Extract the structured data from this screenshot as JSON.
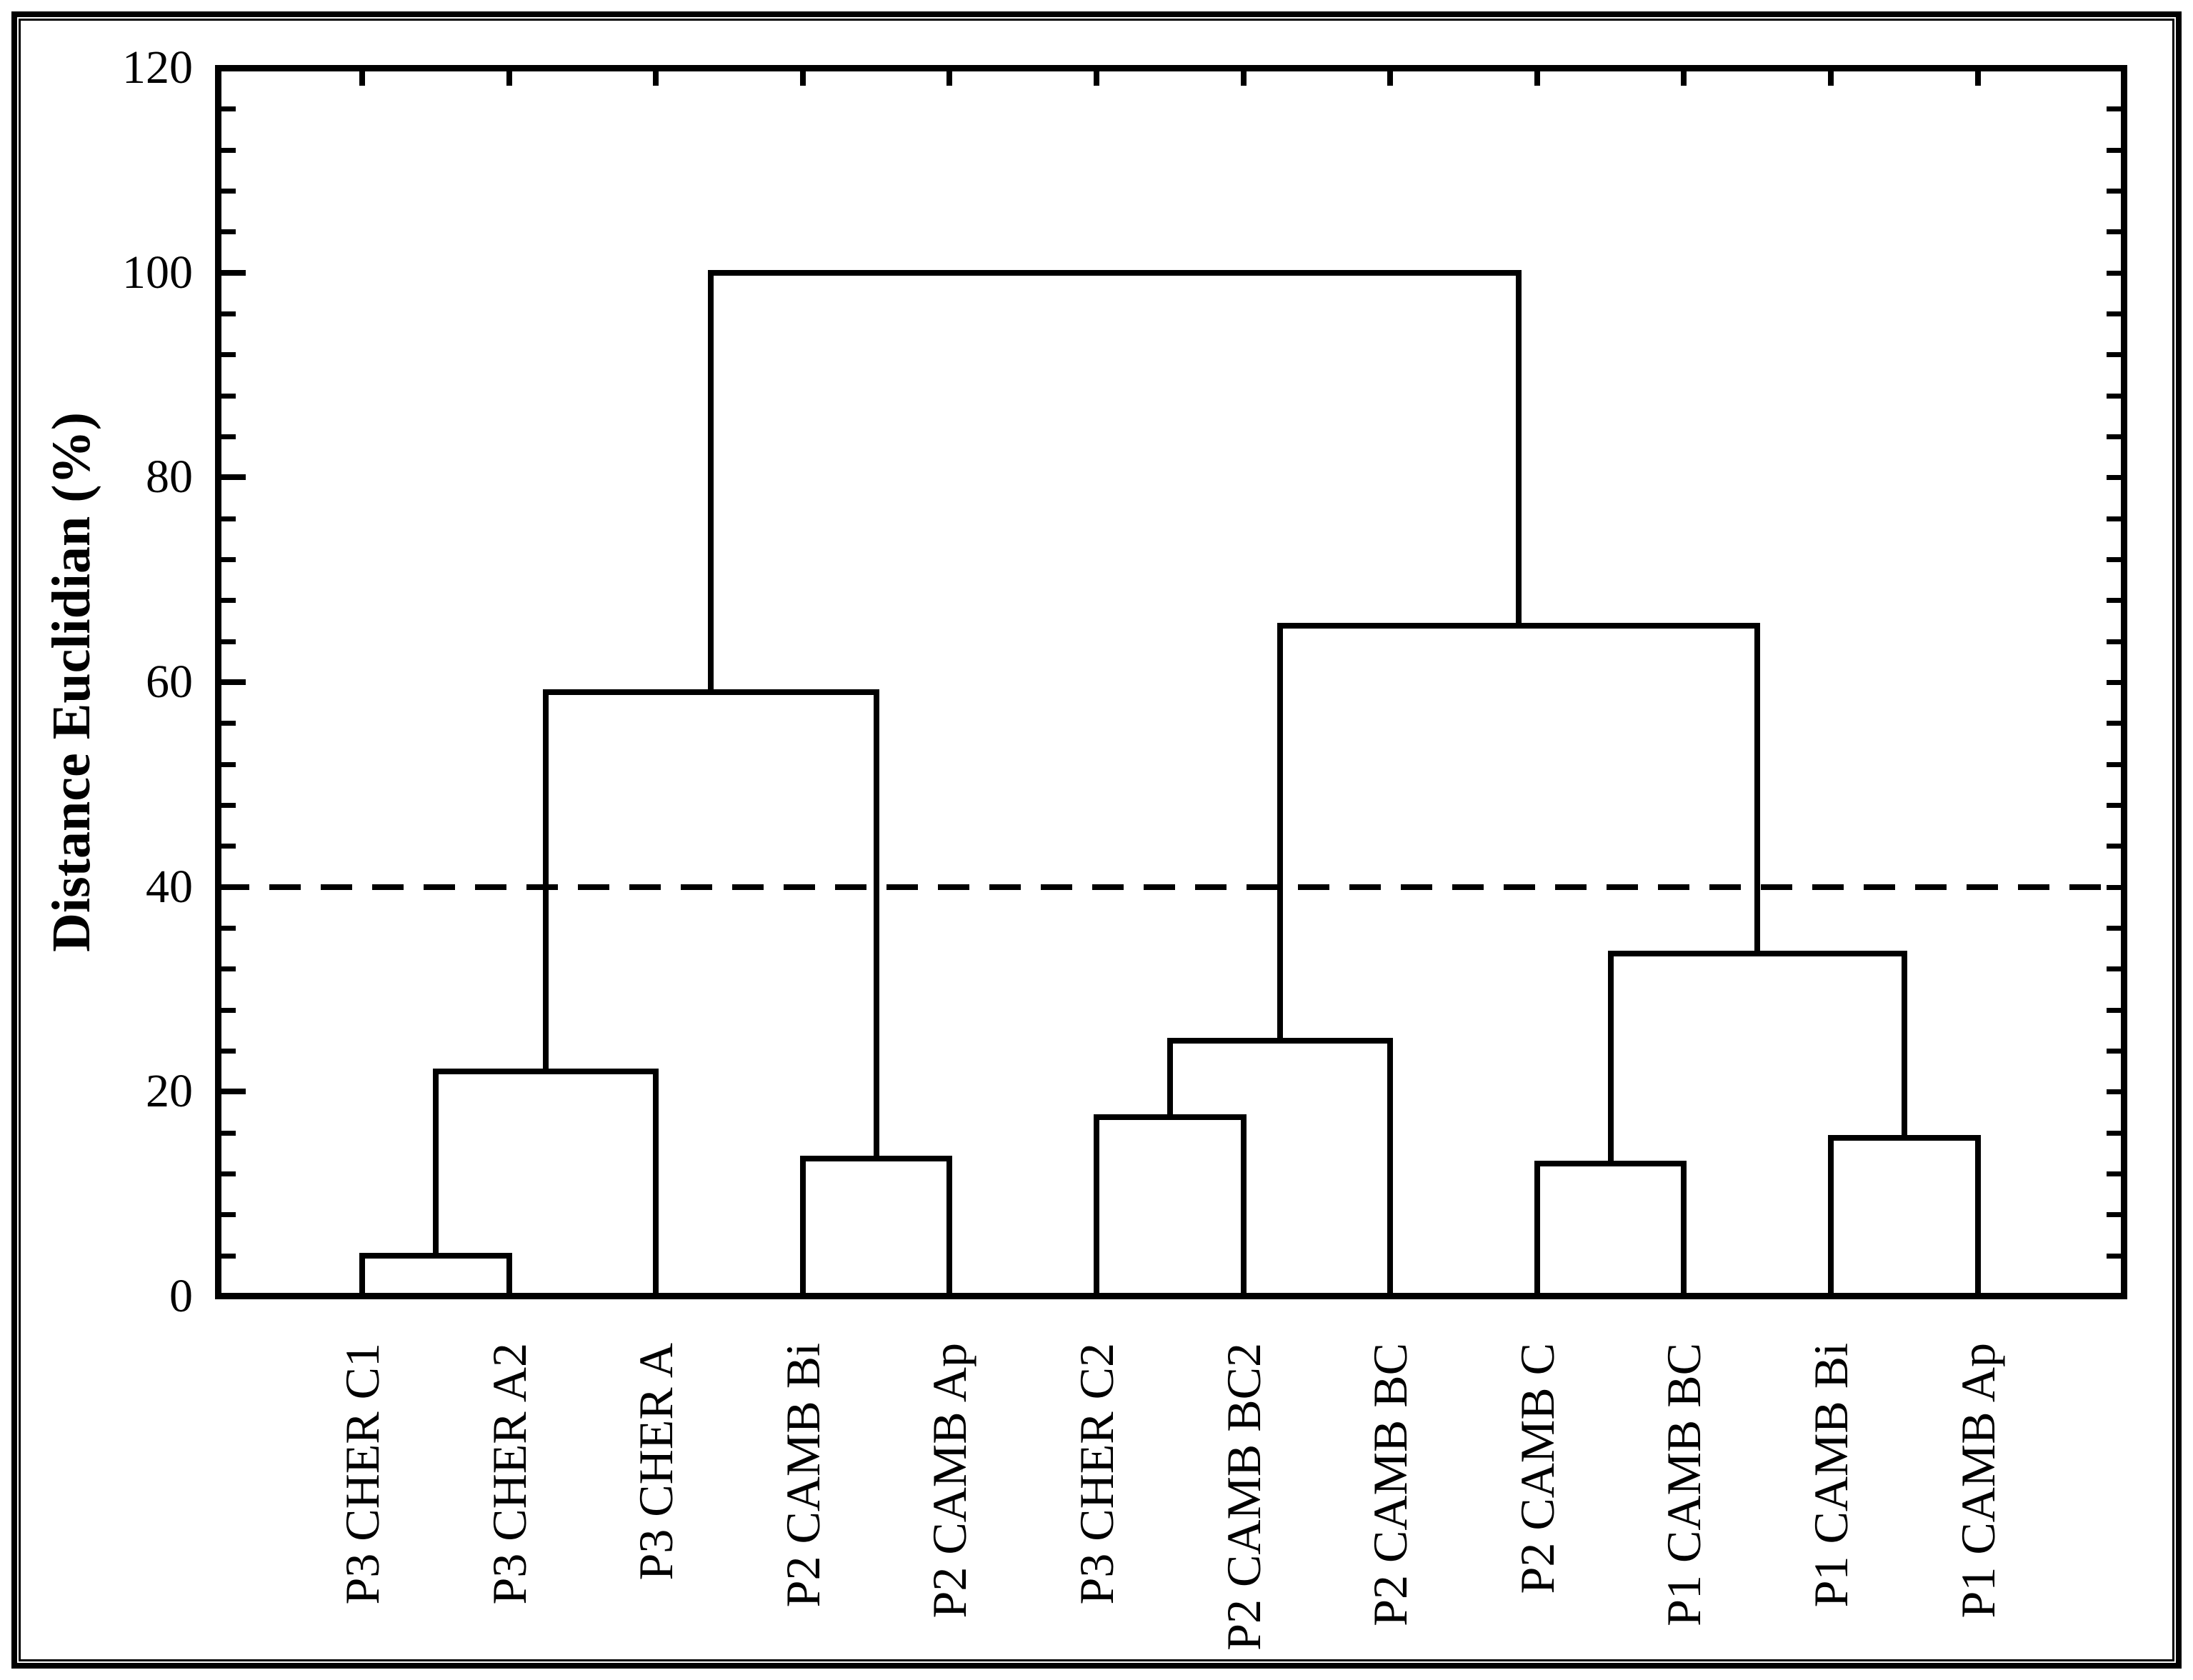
{
  "figure": {
    "background_color": "#ffffff",
    "frame_color": "#000000",
    "line_color": "#000000"
  },
  "chart_data": {
    "type": "dendrogram",
    "title": "",
    "xlabel": "",
    "ylabel": "Distance Euclidian (%)",
    "ylim": [
      0,
      120
    ],
    "yticks": [
      0,
      20,
      40,
      60,
      80,
      100,
      120
    ],
    "ytick_labels": [
      "0",
      "20",
      "40",
      "60",
      "80",
      "100",
      "120"
    ],
    "minor_tick_step": 4,
    "grid": "off",
    "threshold_line": {
      "value": 40,
      "style": "dashed",
      "color": "#000000"
    },
    "leaves": [
      "P3 CHER C1",
      "P3 CHER A2",
      "P3 CHER A",
      "P2 CAMB Bi",
      "P2 CAMB Ap",
      "P3 CHER C2",
      "P2 CAMB BC2",
      "P2 CAMB BC",
      "P2 CAMB C",
      "P1 CAMB BC",
      "P1 CAMB Bi",
      "P1 CAMB Ap"
    ],
    "merges": [
      {
        "id": "m0",
        "a": "L0",
        "b": "L1",
        "height": 4
      },
      {
        "id": "m1",
        "a": "m0",
        "b": "L2",
        "height": 22
      },
      {
        "id": "m2",
        "a": "L3",
        "b": "L4",
        "height": 13.5
      },
      {
        "id": "m3",
        "a": "m1",
        "b": "m2",
        "height": 59
      },
      {
        "id": "m4",
        "a": "L5",
        "b": "L6",
        "height": 17.5
      },
      {
        "id": "m5",
        "a": "m4",
        "b": "L7",
        "height": 25
      },
      {
        "id": "m6",
        "a": "L8",
        "b": "L9",
        "height": 13
      },
      {
        "id": "m7",
        "a": "L10",
        "b": "L11",
        "height": 15.5
      },
      {
        "id": "m8",
        "a": "m6",
        "b": "m7",
        "height": 33.5
      },
      {
        "id": "m9",
        "a": "m5",
        "b": "m8",
        "height": 65.5
      },
      {
        "id": "m10",
        "a": "m3",
        "b": "m9",
        "height": 100
      }
    ]
  }
}
